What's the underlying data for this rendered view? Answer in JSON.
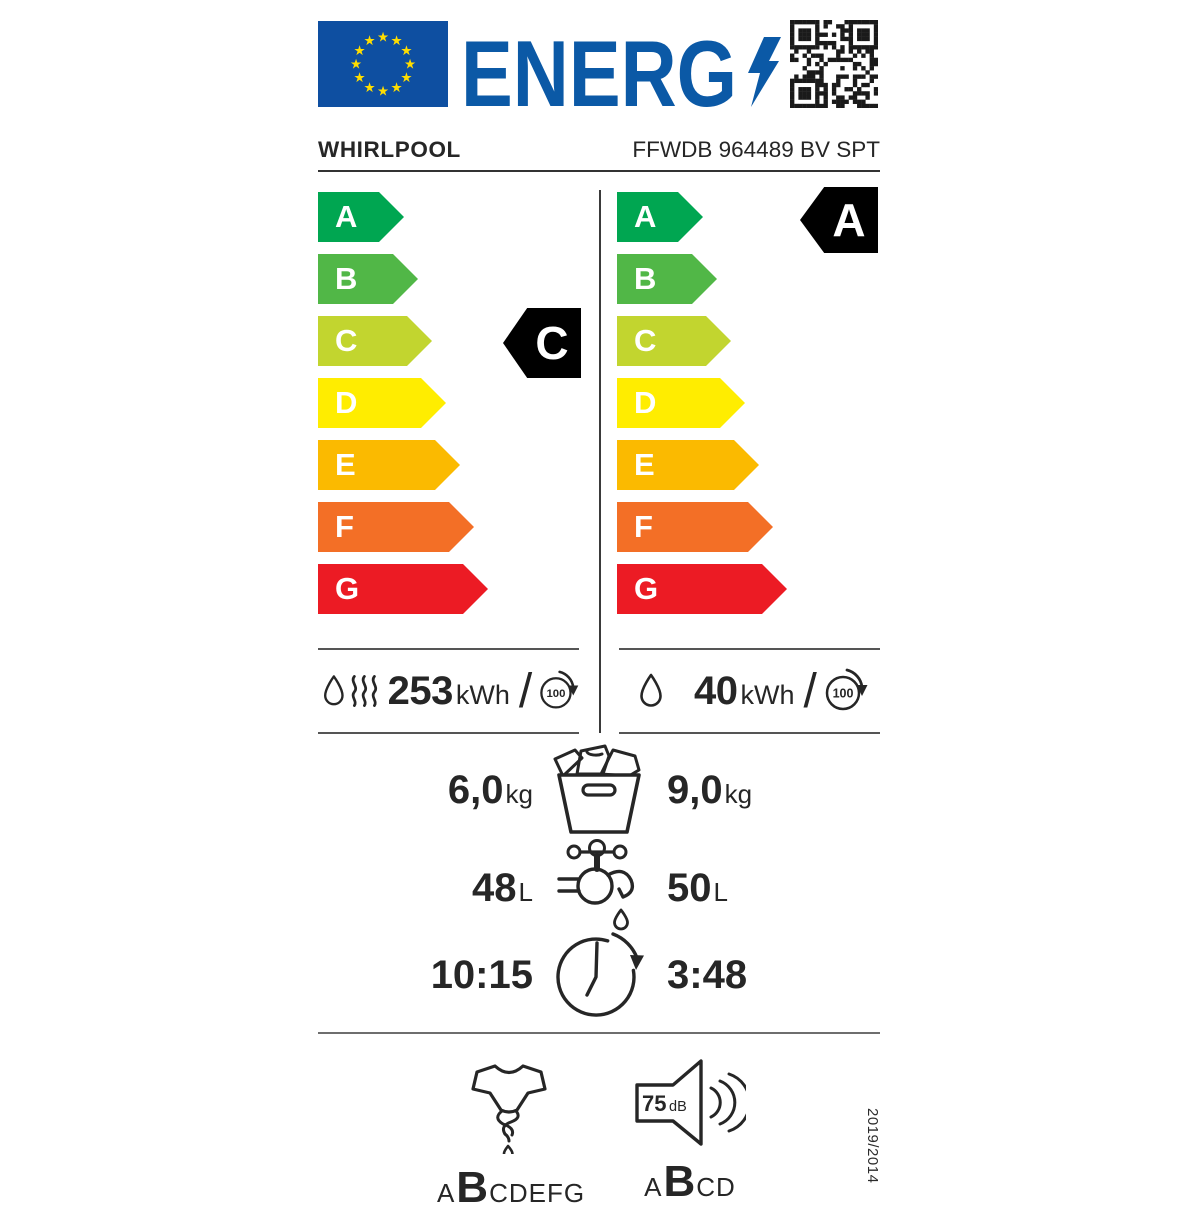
{
  "header": {
    "energ_text": "ENERG",
    "brand": "WHIRLPOOL",
    "model": "FFWDB 964489 BV SPT",
    "flag_blue": "#0E4FA1",
    "logo_blue": "#0B59A6",
    "star_yellow": "#FFDD00",
    "indicator_black": "#000000"
  },
  "scale": {
    "grades": [
      {
        "letter": "A",
        "color": "#00A651"
      },
      {
        "letter": "B",
        "color": "#51B747"
      },
      {
        "letter": "C",
        "color": "#C2D52F"
      },
      {
        "letter": "D",
        "color": "#FFED00"
      },
      {
        "letter": "E",
        "color": "#FBBA00"
      },
      {
        "letter": "F",
        "color": "#F36F26"
      },
      {
        "letter": "G",
        "color": "#EC1B24"
      }
    ]
  },
  "ratings": {
    "wash_dry_class": "C",
    "wash_class": "A"
  },
  "energy": {
    "slash": "/",
    "wash_dry": {
      "value": "253",
      "unit": "kWh",
      "cycles": "100"
    },
    "wash": {
      "value": "40",
      "unit": "kWh",
      "cycles": "100"
    }
  },
  "capacity": {
    "wash_dry": "6,0",
    "wash": "9,0",
    "unit": "kg"
  },
  "water": {
    "wash_dry": "48",
    "wash": "50",
    "unit": "L"
  },
  "duration": {
    "wash_dry": "10:15",
    "wash": "3:48"
  },
  "spin": {
    "pre": "A",
    "grade": "B",
    "post": "CDEFG"
  },
  "noise": {
    "value": "75",
    "unit": "dB",
    "pre": "A",
    "grade": "B",
    "post": "CD"
  },
  "regulation": "2019/2014"
}
